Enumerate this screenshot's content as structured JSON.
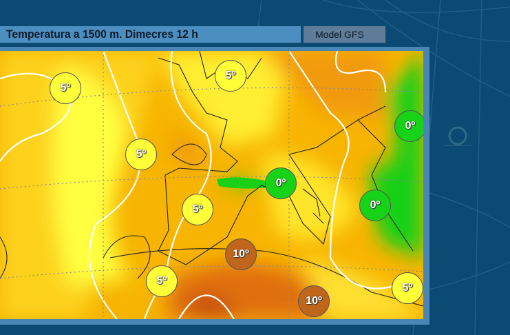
{
  "header": {
    "title": "Temperatura a 1500 m.  Dimecres 12 h",
    "model": "Model GFS"
  },
  "map": {
    "colors": {
      "yellow": "#ffff38",
      "orange": "#f7b400",
      "dark_orange": "#e06a10",
      "green": "#17d317",
      "brown": "#c0661c"
    },
    "labels": [
      {
        "text": "5º",
        "type": "y"
      },
      {
        "text": "5º",
        "type": "y"
      },
      {
        "text": "5º",
        "type": "y"
      },
      {
        "text": "5º",
        "type": "y"
      },
      {
        "text": "5º",
        "type": "y"
      },
      {
        "text": "5º",
        "type": "y"
      },
      {
        "text": "0º",
        "type": "g"
      },
      {
        "text": "0º",
        "type": "g"
      },
      {
        "text": "0º",
        "type": "g"
      },
      {
        "text": "10º",
        "type": "b"
      },
      {
        "text": "10º",
        "type": "b"
      }
    ]
  }
}
